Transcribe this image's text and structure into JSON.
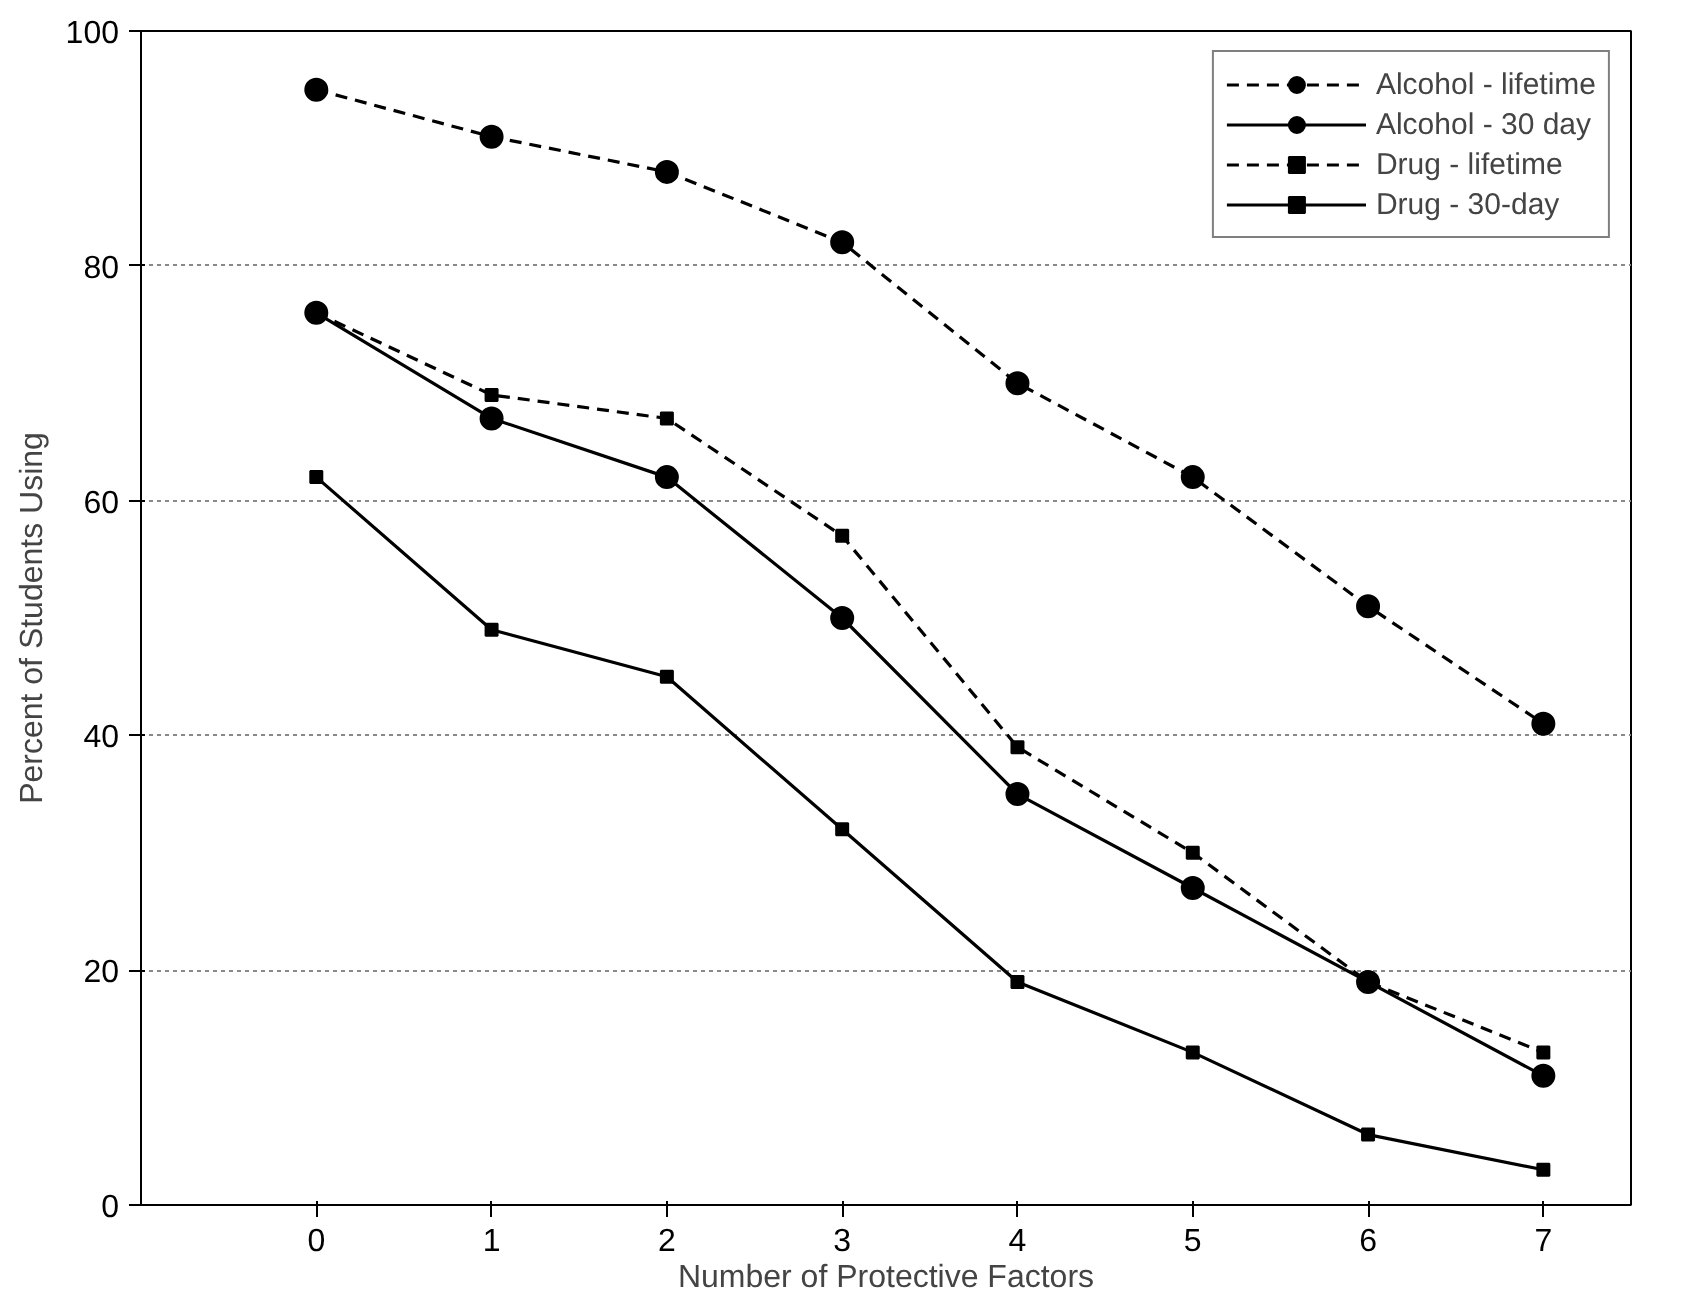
{
  "chart_data": {
    "type": "line",
    "xlabel": "Number of Protective Factors",
    "ylabel": "Percent of Students Using",
    "x": [
      0,
      1,
      2,
      3,
      4,
      5,
      6,
      7
    ],
    "xlim": [
      -1,
      7.5
    ],
    "xticks": [
      0,
      1,
      2,
      3,
      4,
      5,
      6,
      7
    ],
    "ylim": [
      0,
      100
    ],
    "yticks": [
      0,
      20,
      40,
      60,
      80,
      100
    ],
    "grid": "y",
    "legend": "top right",
    "series": [
      {
        "name": "Alcohol - lifetime",
        "color": "#000000",
        "line_style": "dashed",
        "marker": "circle",
        "values": [
          95,
          91,
          88,
          82,
          70,
          62,
          51,
          41
        ]
      },
      {
        "name": "Alcohol - 30 day",
        "color": "#000000",
        "line_style": "solid",
        "marker": "circle",
        "values": [
          76,
          67,
          62,
          50,
          35,
          27,
          19,
          11
        ]
      },
      {
        "name": "Drug - lifetime",
        "color": "#000000",
        "line_style": "dashed",
        "marker": "square",
        "values": [
          76,
          69,
          67,
          57,
          39,
          30,
          19,
          13
        ]
      },
      {
        "name": "Drug - 30-day",
        "color": "#000000",
        "line_style": "solid",
        "marker": "square",
        "values": [
          62,
          49,
          45,
          32,
          19,
          13,
          6,
          3
        ]
      }
    ]
  }
}
